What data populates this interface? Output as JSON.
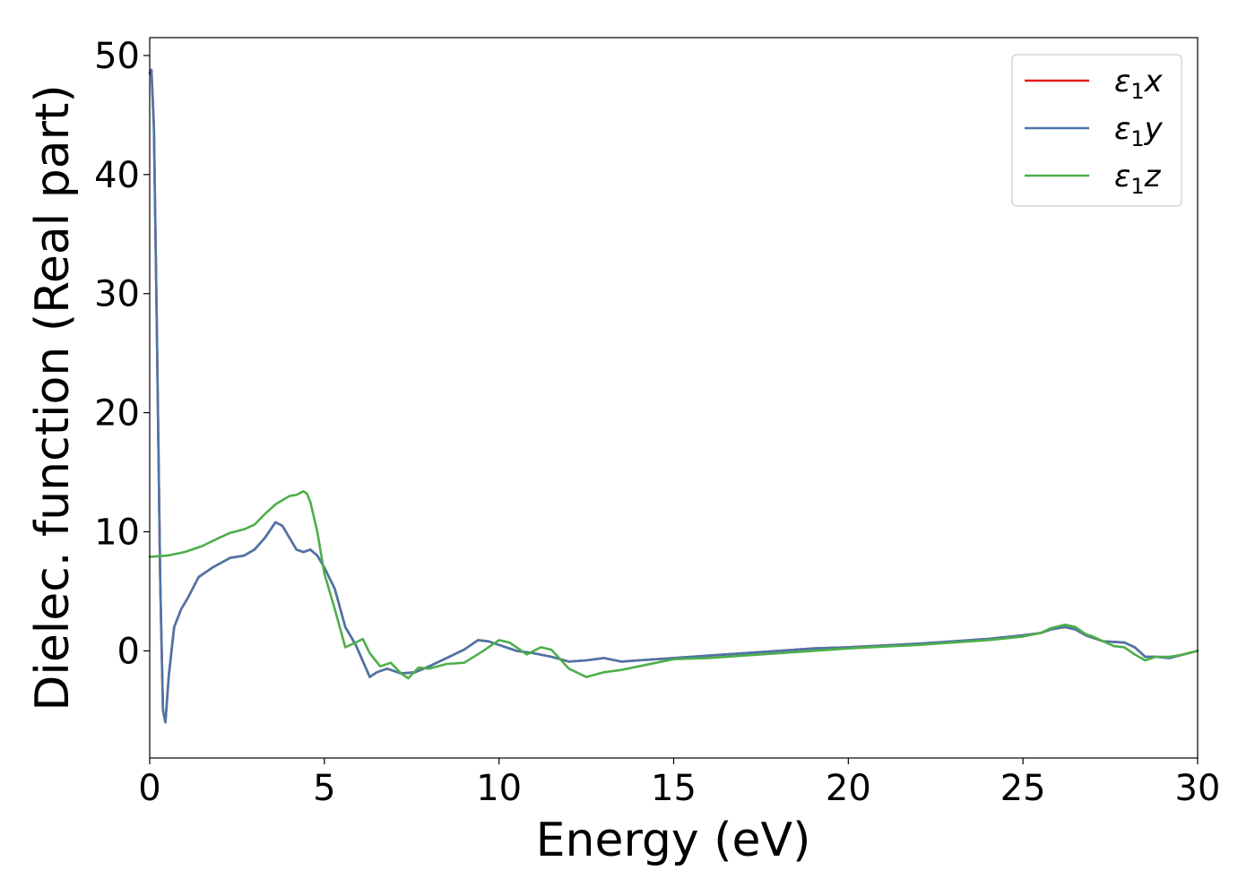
{
  "chart_data": {
    "type": "line",
    "xlabel": "Energy (eV)",
    "ylabel": "Dielec. function (Real part)",
    "xlim": [
      0,
      30
    ],
    "ylim": [
      -9,
      51.5
    ],
    "xticks": [
      0,
      5,
      10,
      15,
      20,
      25,
      30
    ],
    "yticks": [
      0,
      10,
      20,
      30,
      40,
      50
    ],
    "grid": false,
    "legend_position": "top-right",
    "series": [
      {
        "name": "ε1x",
        "label_main": "ε",
        "label_sub": "1",
        "label_var": "x",
        "color": "#e41a1c",
        "x": [
          0,
          0.05,
          0.12,
          0.2,
          0.3,
          0.38,
          0.45,
          0.55,
          0.7,
          0.9,
          1.1,
          1.4,
          1.8,
          2.3,
          2.7,
          3.0,
          3.3,
          3.6,
          3.8,
          4.0,
          4.2,
          4.4,
          4.6,
          4.8,
          5.0,
          5.3,
          5.6,
          5.9,
          6.3,
          6.5,
          6.8,
          7.2,
          7.6,
          8.0,
          8.5,
          9.0,
          9.4,
          9.7,
          10.0,
          10.5,
          11.0,
          11.5,
          12.0,
          12.5,
          13.0,
          13.5,
          14.0,
          15.0,
          16.0,
          17.0,
          18.0,
          19.0,
          20.0,
          21.0,
          22.0,
          23.0,
          24.0,
          25.0,
          25.5,
          25.8,
          26.2,
          26.5,
          26.8,
          27.0,
          27.3,
          27.6,
          27.9,
          28.2,
          28.5,
          28.8,
          29.2,
          29.6,
          30.0
        ],
        "y": [
          48.5,
          48.8,
          44.0,
          28.0,
          6.0,
          -5.0,
          -6.0,
          -2.0,
          2.0,
          3.5,
          4.5,
          6.2,
          7.0,
          7.8,
          8.0,
          8.5,
          9.5,
          10.8,
          10.5,
          9.5,
          8.5,
          8.3,
          8.5,
          8.0,
          7.0,
          5.2,
          2.0,
          0.5,
          -2.2,
          -1.8,
          -1.5,
          -1.9,
          -1.8,
          -1.3,
          -0.6,
          0.1,
          0.9,
          0.8,
          0.5,
          0.0,
          -0.2,
          -0.5,
          -0.9,
          -0.8,
          -0.6,
          -0.9,
          -0.8,
          -0.6,
          -0.4,
          -0.2,
          0.0,
          0.2,
          0.3,
          0.45,
          0.6,
          0.8,
          1.0,
          1.3,
          1.5,
          1.8,
          2.0,
          1.8,
          1.3,
          1.1,
          0.8,
          0.75,
          0.7,
          0.3,
          -0.5,
          -0.5,
          -0.6,
          -0.3,
          0.0
        ]
      },
      {
        "name": "ε1y",
        "label_main": "ε",
        "label_sub": "1",
        "label_var": "y",
        "color": "#4a76a8",
        "x": [
          0,
          0.05,
          0.12,
          0.2,
          0.3,
          0.38,
          0.45,
          0.55,
          0.7,
          0.9,
          1.1,
          1.4,
          1.8,
          2.3,
          2.7,
          3.0,
          3.3,
          3.6,
          3.8,
          4.0,
          4.2,
          4.4,
          4.6,
          4.8,
          5.0,
          5.3,
          5.6,
          5.9,
          6.3,
          6.5,
          6.8,
          7.2,
          7.6,
          8.0,
          8.5,
          9.0,
          9.4,
          9.7,
          10.0,
          10.5,
          11.0,
          11.5,
          12.0,
          12.5,
          13.0,
          13.5,
          14.0,
          15.0,
          16.0,
          17.0,
          18.0,
          19.0,
          20.0,
          21.0,
          22.0,
          23.0,
          24.0,
          25.0,
          25.5,
          25.8,
          26.2,
          26.5,
          26.8,
          27.0,
          27.3,
          27.6,
          27.9,
          28.2,
          28.5,
          28.8,
          29.2,
          29.6,
          30.0
        ],
        "y": [
          48.5,
          48.8,
          44.0,
          28.0,
          6.0,
          -5.0,
          -6.0,
          -2.0,
          2.0,
          3.5,
          4.5,
          6.2,
          7.0,
          7.8,
          8.0,
          8.5,
          9.5,
          10.8,
          10.5,
          9.5,
          8.5,
          8.3,
          8.5,
          8.0,
          7.0,
          5.2,
          2.0,
          0.5,
          -2.2,
          -1.8,
          -1.5,
          -1.9,
          -1.8,
          -1.3,
          -0.6,
          0.1,
          0.9,
          0.8,
          0.5,
          0.0,
          -0.2,
          -0.5,
          -0.9,
          -0.8,
          -0.6,
          -0.9,
          -0.8,
          -0.6,
          -0.4,
          -0.2,
          0.0,
          0.2,
          0.3,
          0.45,
          0.6,
          0.8,
          1.0,
          1.3,
          1.5,
          1.8,
          2.0,
          1.8,
          1.3,
          1.1,
          0.8,
          0.75,
          0.7,
          0.3,
          -0.5,
          -0.5,
          -0.6,
          -0.3,
          0.0
        ]
      },
      {
        "name": "ε1z",
        "label_main": "ε",
        "label_sub": "1",
        "label_var": "z",
        "color": "#4daf4a",
        "x": [
          0,
          0.5,
          1.0,
          1.5,
          2.0,
          2.3,
          2.7,
          3.0,
          3.3,
          3.6,
          4.0,
          4.2,
          4.4,
          4.5,
          4.6,
          4.8,
          5.0,
          5.3,
          5.6,
          5.9,
          6.1,
          6.3,
          6.6,
          6.9,
          7.2,
          7.4,
          7.7,
          8.0,
          8.5,
          9.0,
          9.5,
          10.0,
          10.3,
          10.8,
          11.2,
          11.5,
          12.0,
          12.5,
          13.0,
          13.5,
          14.0,
          15.0,
          16.0,
          17.0,
          18.0,
          19.0,
          20.0,
          21.0,
          22.0,
          23.0,
          24.0,
          25.0,
          25.5,
          25.8,
          26.2,
          26.5,
          26.8,
          27.0,
          27.3,
          27.6,
          27.9,
          28.2,
          28.5,
          28.8,
          29.2,
          29.6,
          30.0
        ],
        "y": [
          7.9,
          8.0,
          8.3,
          8.8,
          9.5,
          9.9,
          10.2,
          10.6,
          11.5,
          12.3,
          13.0,
          13.1,
          13.4,
          13.2,
          12.5,
          10.0,
          6.5,
          3.5,
          0.3,
          0.7,
          1.0,
          -0.2,
          -1.3,
          -1.0,
          -1.9,
          -2.3,
          -1.4,
          -1.5,
          -1.1,
          -1.0,
          -0.1,
          0.9,
          0.7,
          -0.3,
          0.3,
          0.1,
          -1.5,
          -2.2,
          -1.8,
          -1.6,
          -1.3,
          -0.7,
          -0.6,
          -0.4,
          -0.2,
          0.0,
          0.2,
          0.35,
          0.5,
          0.7,
          0.9,
          1.2,
          1.5,
          1.9,
          2.2,
          2.0,
          1.4,
          1.2,
          0.8,
          0.4,
          0.3,
          -0.3,
          -0.8,
          -0.5,
          -0.5,
          -0.3,
          0.0
        ]
      }
    ]
  }
}
